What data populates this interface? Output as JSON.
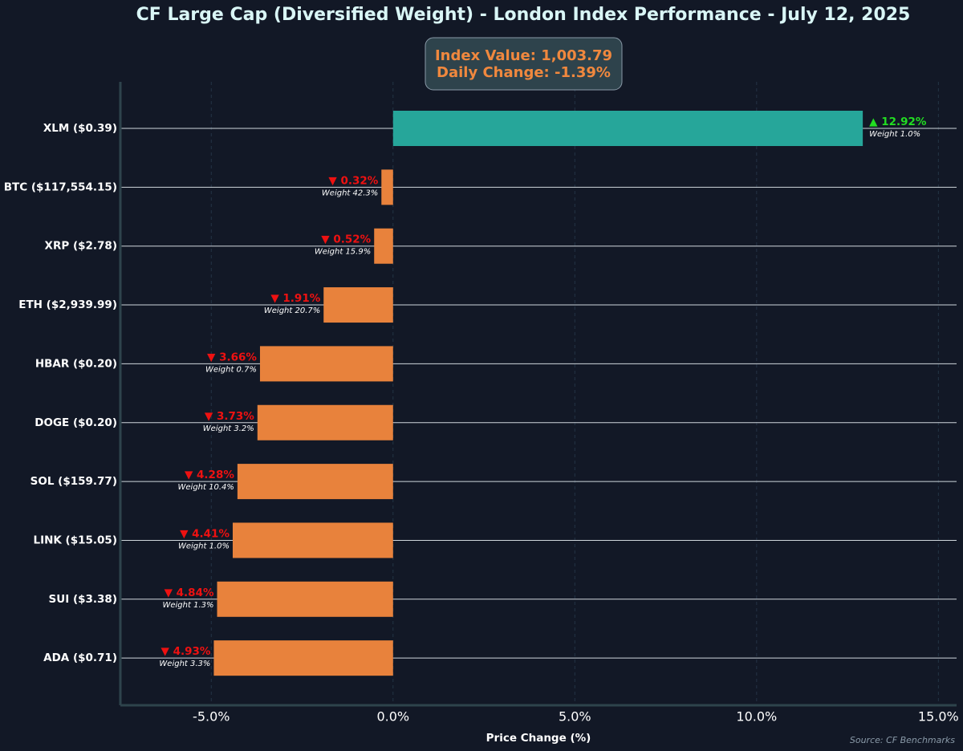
{
  "chart_data": {
    "type": "bar",
    "orientation": "horizontal",
    "title": "CF Large Cap (Diversified Weight) - London Index Performance - July 12, 2025",
    "xlabel": "Price Change (%)",
    "ylabel": "",
    "xlim": [
      -7.5,
      15.5
    ],
    "x_ticks": [
      -5,
      0,
      5,
      10,
      15
    ],
    "x_tick_labels": [
      "-5.0%",
      "0.0%",
      "5.0%",
      "10.0%",
      "15.0%"
    ],
    "grid": true,
    "categories": [
      "XLM ($0.39)",
      "BTC ($117,554.15)",
      "XRP ($2.78)",
      "ETH ($2,939.99)",
      "HBAR ($0.20)",
      "DOGE ($0.20)",
      "SOL ($159.77)",
      "LINK ($15.05)",
      "SUI ($3.38)",
      "ADA ($0.71)"
    ],
    "values": [
      12.92,
      -0.32,
      -0.52,
      -1.91,
      -3.66,
      -3.73,
      -4.28,
      -4.41,
      -4.84,
      -4.93
    ],
    "value_labels": [
      "▲ 12.92%",
      "▼ 0.32%",
      "▼ 0.52%",
      "▼ 1.91%",
      "▼ 3.66%",
      "▼ 3.73%",
      "▼ 4.28%",
      "▼ 4.41%",
      "▼ 4.84%",
      "▼ 4.93%"
    ],
    "weight_labels": [
      "Weight 1.0%",
      "Weight 42.3%",
      "Weight 15.9%",
      "Weight 20.7%",
      "Weight 0.7%",
      "Weight 3.2%",
      "Weight 10.4%",
      "Weight 1.0%",
      "Weight 1.3%",
      "Weight 3.3%"
    ],
    "info_box": [
      "Index Value: 1,003.79",
      "Daily Change: -1.39%"
    ],
    "source": "Source: CF Benchmarks",
    "colors": {
      "background": "#121826",
      "positive_bar": "#26a69a",
      "negative_bar": "#e8823c",
      "positive_text": "#22dd22",
      "negative_text": "#ee1111",
      "title": "#d9f6f6",
      "info_text": "#f0883e",
      "info_box_fill": "#2e434c",
      "axis": "#2e434c",
      "grid": "#243446",
      "row_line": "#cfd6dc"
    }
  }
}
